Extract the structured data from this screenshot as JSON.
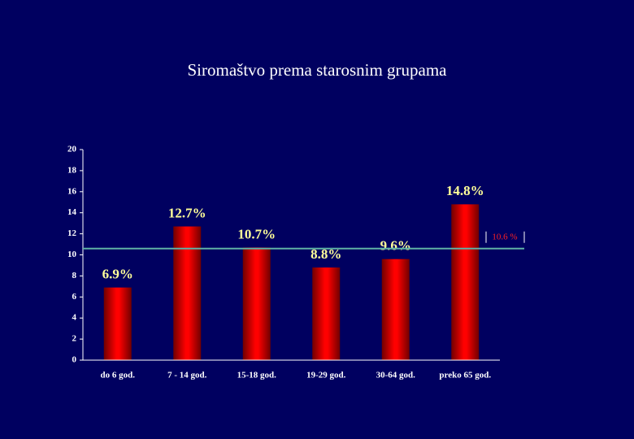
{
  "chart_data": {
    "type": "bar",
    "title": "Siromaštvo prema starosnim grupama",
    "categories": [
      "do 6 god.",
      "7 - 14 god.",
      "15-18 god.",
      "19-29 god.",
      "30-64 god.",
      "preko 65 god."
    ],
    "values": [
      6.9,
      12.7,
      10.7,
      8.8,
      9.6,
      14.8
    ],
    "value_labels": [
      "6.9%",
      "12.7%",
      "10.7%",
      "8.8%",
      "9.6%",
      "14.8%"
    ],
    "color": "#ff0000",
    "ylim": [
      0,
      20
    ],
    "yticks": [
      0,
      2,
      4,
      6,
      8,
      10,
      12,
      14,
      16,
      18,
      20
    ],
    "reference_line": {
      "value": 10.6,
      "label": "10.6 %",
      "color": "#5fb3a6"
    }
  }
}
